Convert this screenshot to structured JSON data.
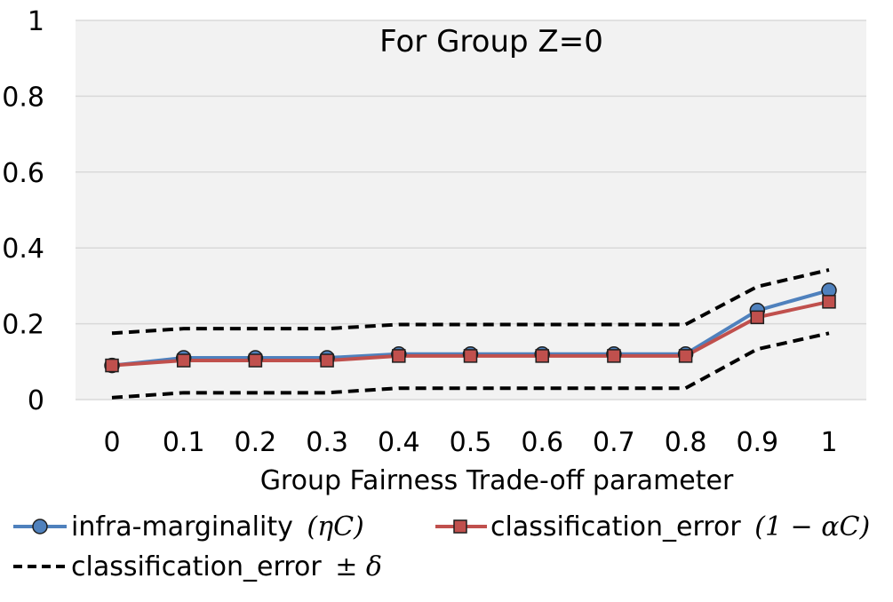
{
  "chart_data": {
    "type": "line",
    "title": "For Group Z=0",
    "xlabel": "Group Fairness Trade-off parameter",
    "ylabel": "",
    "categories": [
      "0",
      "0.1",
      "0.2",
      "0.3",
      "0.4",
      "0.5",
      "0.6",
      "0.7",
      "0.8",
      "0.9",
      "1"
    ],
    "ylim": [
      0,
      1
    ],
    "yticks": [
      "0",
      "0.2",
      "0.4",
      "0.6",
      "0.8",
      "1"
    ],
    "grid": true,
    "legend_position": "bottom",
    "series": [
      {
        "name": "infra-marginality",
        "name_math": "(ηC)",
        "color": "#4f81bd",
        "marker": "circle",
        "values": [
          0.09,
          0.11,
          0.11,
          0.11,
          0.12,
          0.12,
          0.12,
          0.12,
          0.12,
          0.235,
          0.288
        ]
      },
      {
        "name": "classification_error",
        "name_math": "(1 − αC)",
        "color": "#c0504d",
        "marker": "square",
        "values": [
          0.09,
          0.103,
          0.103,
          0.103,
          0.115,
          0.115,
          0.115,
          0.115,
          0.115,
          0.217,
          0.258
        ]
      },
      {
        "name": "classification_error",
        "name_math": "± δ",
        "color": "#000000",
        "style": "dashed",
        "bands": {
          "upper": [
            0.175,
            0.187,
            0.187,
            0.187,
            0.198,
            0.198,
            0.198,
            0.198,
            0.198,
            0.298,
            0.342
          ],
          "lower": [
            0.005,
            0.018,
            0.018,
            0.018,
            0.03,
            0.03,
            0.03,
            0.03,
            0.03,
            0.133,
            0.175
          ]
        }
      }
    ]
  }
}
